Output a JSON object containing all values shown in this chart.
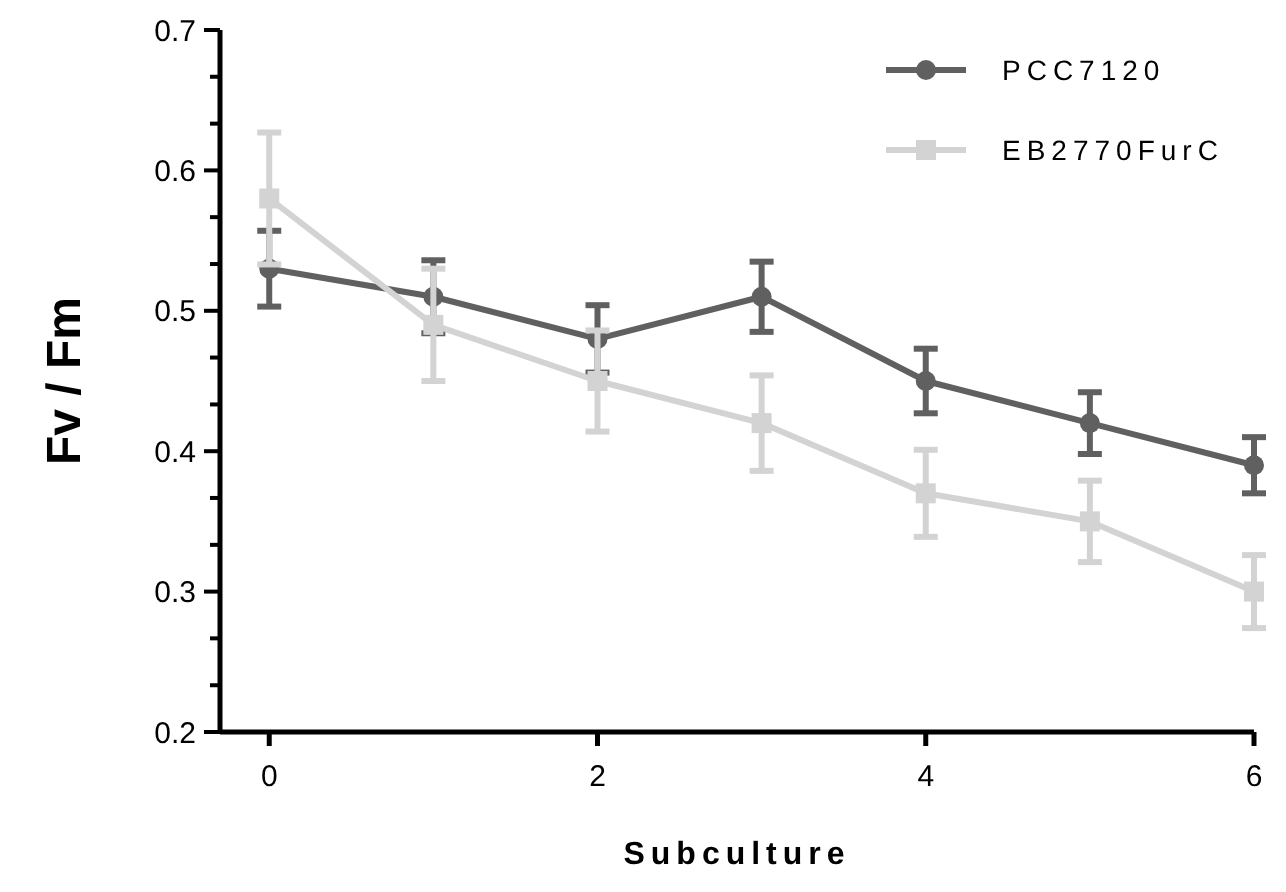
{
  "chart_data": {
    "type": "line",
    "xlabel": "Subculture",
    "ylabel": "Fv / Fm",
    "x": [
      0,
      1,
      2,
      3,
      4,
      5,
      6
    ],
    "xlim": [
      -0.3,
      6
    ],
    "xticks": [
      0,
      2,
      4,
      6
    ],
    "ylim": [
      0.2,
      0.7
    ],
    "yticks": [
      0.2,
      {
        "value": 0.2333,
        "label": null
      },
      {
        "value": 0.2667,
        "label": null
      },
      0.3,
      {
        "value": 0.3333,
        "label": null
      },
      {
        "value": 0.3667,
        "label": null
      },
      0.4,
      {
        "value": 0.4333,
        "label": null
      },
      {
        "value": 0.4667,
        "label": null
      },
      0.5,
      {
        "value": 0.5333,
        "label": null
      },
      {
        "value": 0.5667,
        "label": null
      },
      0.6,
      {
        "value": 0.6333,
        "label": null
      },
      {
        "value": 0.6667,
        "label": null
      },
      0.7
    ],
    "grid": false,
    "legend": "top right",
    "line_style": "solid",
    "series": [
      {
        "name": "PCC7120",
        "color": "#606060",
        "marker": "circle",
        "values": [
          0.53,
          0.51,
          0.48,
          0.51,
          0.45,
          0.42,
          0.39
        ],
        "errors": [
          0.027,
          0.026,
          0.024,
          0.025,
          0.023,
          0.022,
          0.02
        ]
      },
      {
        "name": "EB2770FurC",
        "color": "#d3d3d3",
        "marker": "square",
        "values": [
          0.58,
          0.49,
          0.45,
          0.42,
          0.37,
          0.35,
          0.3
        ],
        "errors": [
          0.047,
          0.04,
          0.036,
          0.034,
          0.031,
          0.029,
          0.026
        ]
      }
    ]
  }
}
